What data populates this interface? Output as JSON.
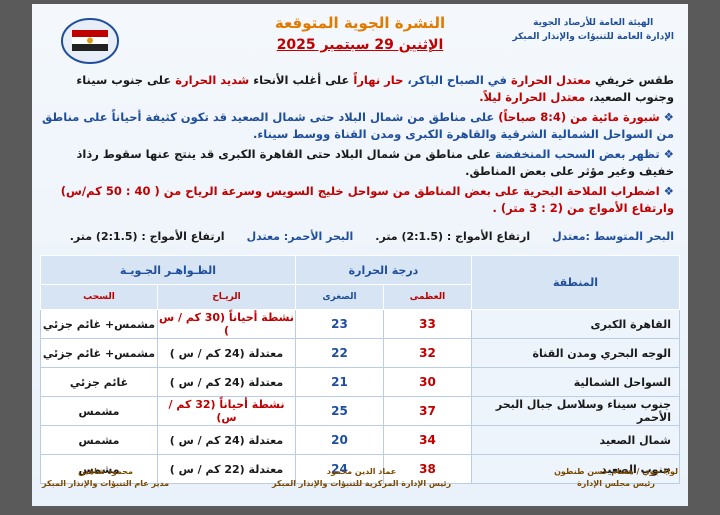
{
  "header": {
    "org": [
      "الهيئة العامة للأرصاد الجوية",
      "الإدارة العامة للتنبؤات والإنذار المبكر"
    ],
    "title": "النشرة الجوية المتوقعة",
    "date": "الإثنين 29 سبتمبر 2025"
  },
  "paragraphs": [
    {
      "segments": [
        {
          "text": "طقس خريفي ",
          "color": "#1a1a1a"
        },
        {
          "text": "معتدل الحرارة",
          "color": "#c00000"
        },
        {
          "text": " في الصباح الباكر، ",
          "color": "#1f4e9c"
        },
        {
          "text": "حار نهاراً",
          "color": "#c00000"
        },
        {
          "text": " على أغلب الأنحاء ",
          "color": "#1a1a1a"
        },
        {
          "text": "شديد الحرارة",
          "color": "#c00000"
        },
        {
          "text": " على جنوب سيناء وجنوب الصعيد، ",
          "color": "#1a1a1a"
        },
        {
          "text": "معتدل الحرارة ليلاً.",
          "color": "#c00000"
        }
      ]
    },
    {
      "segments": [
        {
          "text": "شبورة مائية من (8:4 صباحاً)",
          "color": "#c00000"
        },
        {
          "text": " على مناطق من شمال البلاد حتى شمال الصعيد قد تكون كثيفة أحياناً على مناطق من السواحل الشمالية الشرقية والقاهرة الكبرى ومدن القناة ووسط سيناء.",
          "color": "#1f4e9c"
        }
      ]
    },
    {
      "segments": [
        {
          "text": "تظهر بعض السحب المنخفضة",
          "color": "#1f4e9c"
        },
        {
          "text": " على مناطق من شمال البلاد حتى القاهرة الكبرى قد ينتج عنها سقوط رذاذ خفيف وغير مؤثر على بعض المناطق.",
          "color": "#1a1a1a"
        }
      ]
    },
    {
      "segments": [
        {
          "text": "اضطراب الملاحة البحرية على بعض المناطق من سواحل خليج السويس وسرعة الرياح من ( 40 : 50 كم/س) وارتفاع الأمواج من (2 : 3 متر) .",
          "color": "#c00000"
        }
      ]
    }
  ],
  "seas": [
    {
      "name": "البحر المتوسط :معتدل",
      "waves": "ارتفاع الأمواج : (2:1.5) متر."
    },
    {
      "name": "البحر الأحمر: معتدل",
      "waves": "ارتفاع الأمواج : (2:1.5) متر."
    }
  ],
  "table": {
    "headers": {
      "region": "المنطقة",
      "temperature": "درجة الحرارة",
      "max": "العظمى",
      "min": "الصغرى",
      "phenomena": "الظـواهـر الجـويـة",
      "wind": "الريـاح",
      "clouds": "السحب"
    },
    "rows": [
      {
        "region": "القاهرة الكبرى",
        "max": 33,
        "min": 23,
        "wind": "نشطة أحياناً (30 كم / س )",
        "wind_color": "#c00000",
        "clouds": "مشمس+ غائم جزئي"
      },
      {
        "region": "الوجه البحري ومدن القناة",
        "max": 32,
        "min": 22,
        "wind": "معتدلة (24 كم / س )",
        "wind_color": "#1a1a1a",
        "clouds": "مشمس+ غائم جزئي"
      },
      {
        "region": "السواحل الشمالية",
        "max": 30,
        "min": 21,
        "wind": "معتدلة (24 كم / س )",
        "wind_color": "#1a1a1a",
        "clouds": "غائم جزئي"
      },
      {
        "region": "جنوب سيناء وسلاسل جبال البحر الأحمر",
        "max": 37,
        "min": 25,
        "wind": "نشطة أحياناً (32 كم / س)",
        "wind_color": "#c00000",
        "clouds": "مشمس"
      },
      {
        "region": "شمال الصعيد",
        "max": 34,
        "min": 20,
        "wind": "معتدلة (24 كم / س )",
        "wind_color": "#1a1a1a",
        "clouds": "مشمس"
      },
      {
        "region": "جنوب الصعيد",
        "max": 38,
        "min": 24,
        "wind": "معتدلة (22 كم / س )",
        "wind_color": "#1a1a1a",
        "clouds": "مشمس"
      }
    ]
  },
  "footer": [
    {
      "name": "محمود شاهين",
      "role": "مدير عام التنبؤات والإنذار المبكر"
    },
    {
      "name": "عماد الدين محمود",
      "role": "رئيس الإدارة المركزية للتنبؤات والإنذار المبكر"
    },
    {
      "name": "لواء جوي / هشام حسن طنطون",
      "role": "رئيس مجلس الإدارة"
    }
  ]
}
